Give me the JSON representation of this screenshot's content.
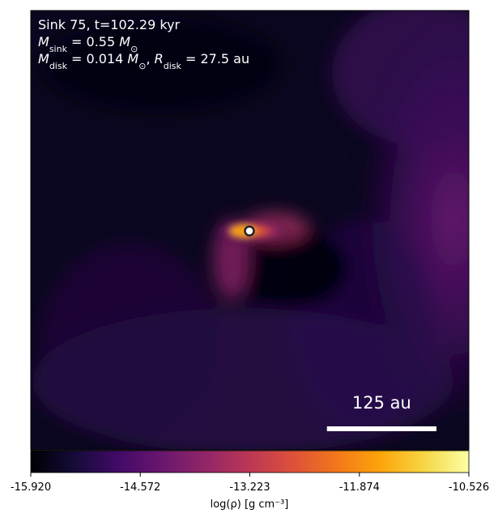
{
  "chart_data": {
    "type": "density-map",
    "annotation_lines": [
      [
        {
          "t": "Sink 75, t=102.29 kyr"
        }
      ],
      [
        {
          "t": "M",
          "italic": true
        },
        {
          "t": "sink",
          "sub": true
        },
        {
          "t": " = 0.55 "
        },
        {
          "t": "M",
          "italic": true
        },
        {
          "t": "⊙",
          "sub": true
        }
      ],
      [
        {
          "t": "M",
          "italic": true
        },
        {
          "t": "disk",
          "sub": true
        },
        {
          "t": " = 0.014 "
        },
        {
          "t": "M",
          "italic": true
        },
        {
          "t": "⊙",
          "sub": true
        },
        {
          "t": ", "
        },
        {
          "t": "R",
          "italic": true
        },
        {
          "t": "disk",
          "sub": true
        },
        {
          "t": " = 27.5 au"
        }
      ]
    ],
    "scalebar": {
      "value": 125,
      "label": "125 au"
    },
    "extent_au": 500,
    "colorbar": {
      "label": "log(ρ) [g cm⁻³]",
      "cmap": "inferno",
      "clim": [
        -15.92,
        -10.526
      ],
      "ticks": [
        {
          "value": -15.92,
          "label": "-15.920"
        },
        -14.572,
        -13.223,
        -11.874,
        -10.526
      ]
    }
  }
}
